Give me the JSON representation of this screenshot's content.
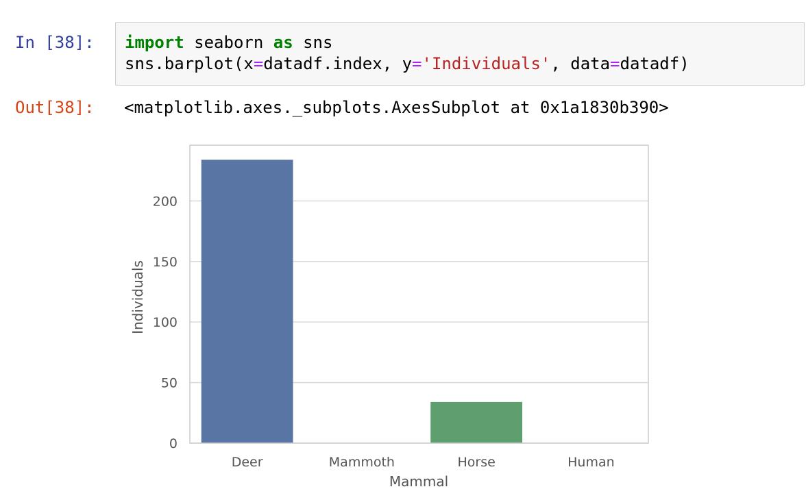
{
  "input_cell": {
    "prompt": "In [38]:",
    "code_lines": [
      [
        {
          "text": "import",
          "style": "kw"
        },
        {
          "text": " seaborn ",
          "style": ""
        },
        {
          "text": "as",
          "style": "kw"
        },
        {
          "text": " sns",
          "style": ""
        }
      ],
      [
        {
          "text": "sns.barplot(x",
          "style": ""
        },
        {
          "text": "=",
          "style": "op"
        },
        {
          "text": "datadf.index, y",
          "style": ""
        },
        {
          "text": "=",
          "style": "op"
        },
        {
          "text": "'Individuals'",
          "style": "str"
        },
        {
          "text": ", data",
          "style": ""
        },
        {
          "text": "=",
          "style": "op"
        },
        {
          "text": "datadf)",
          "style": ""
        }
      ]
    ]
  },
  "output_cell": {
    "prompt": "Out[38]:",
    "text": "<matplotlib.axes._subplots.AxesSubplot at 0x1a1830b390>"
  },
  "colors": {
    "in_prompt": "#303F9F",
    "out_prompt": "#D84315",
    "grid": "#d9d9d9",
    "tick_label": "#555555"
  },
  "chart_data": {
    "type": "bar",
    "categories": [
      "Deer",
      "Mammoth",
      "Horse",
      "Human"
    ],
    "values": [
      234,
      0,
      34,
      0
    ],
    "colors": [
      "#5975a4",
      "#cc8963",
      "#5f9e6e",
      "#b55d60"
    ],
    "title": "",
    "xlabel": "Mammal",
    "ylabel": "Individuals",
    "ylim": [
      0,
      246
    ],
    "yticks": [
      0,
      50,
      100,
      150,
      200
    ],
    "grid": true,
    "grid_axis": "y"
  }
}
